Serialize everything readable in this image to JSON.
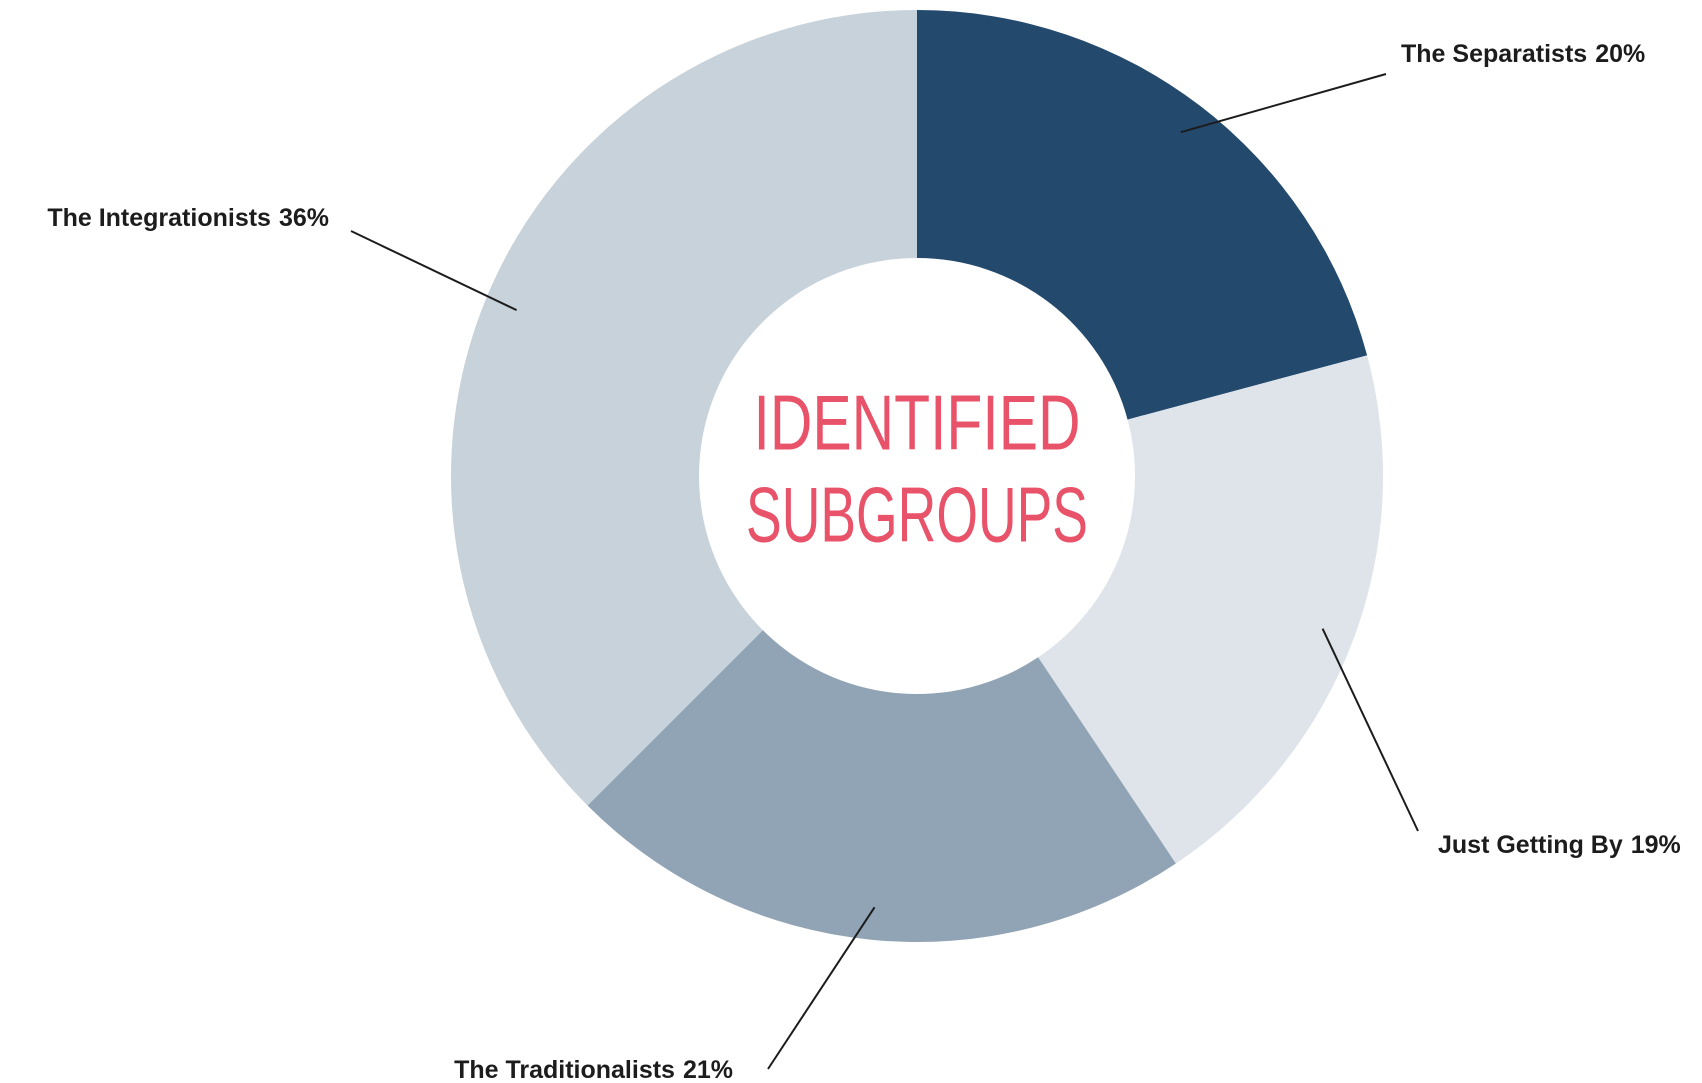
{
  "chart_data": {
    "type": "donut",
    "center_label": [
      "IDENTIFIED",
      "SUBGROUPS"
    ],
    "categories": [
      "The Separatists",
      "Just Getting By",
      "The Traditionalists",
      "The Integrationists"
    ],
    "values": [
      20,
      19,
      21,
      36
    ],
    "value_labels": [
      "20%",
      "19%",
      "21%",
      "36%"
    ],
    "colors": [
      "#23496d",
      "#dfe4eb",
      "#91a4b5",
      "#c7d2db"
    ],
    "center_color": "#e9536a"
  }
}
